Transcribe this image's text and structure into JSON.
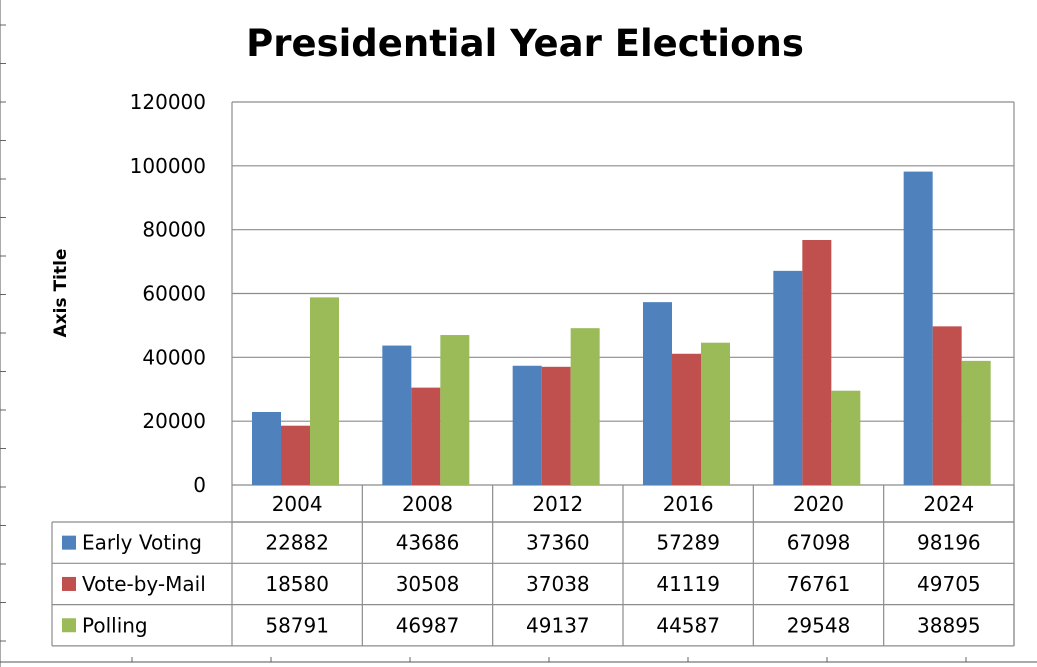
{
  "chart_data": {
    "type": "bar",
    "title": "Presidential Year Elections",
    "ylabel": "Axis Title",
    "xlabel": "",
    "categories": [
      "2004",
      "2008",
      "2012",
      "2016",
      "2020",
      "2024"
    ],
    "series": [
      {
        "name": "Early Voting",
        "color": "#4f81bd",
        "values": [
          22882,
          43686,
          37360,
          57289,
          67098,
          98196
        ]
      },
      {
        "name": "Vote-by-Mail",
        "color": "#c0504d",
        "values": [
          18580,
          30508,
          37038,
          41119,
          76761,
          49705
        ]
      },
      {
        "name": "Polling",
        "color": "#9bbb59",
        "values": [
          58791,
          46987,
          49137,
          44587,
          29548,
          38895
        ]
      }
    ],
    "ylim": [
      0,
      120000
    ],
    "yticks": [
      "0",
      "20000",
      "40000",
      "60000",
      "80000",
      "100000",
      "120000"
    ],
    "grid": true,
    "legend": "data-table"
  }
}
